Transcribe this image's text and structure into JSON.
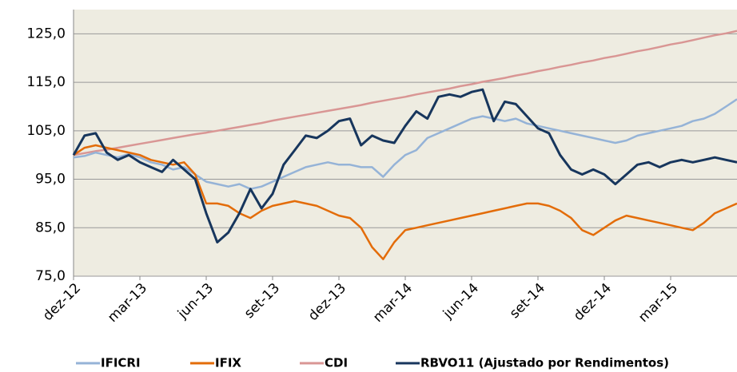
{
  "chart_data": {
    "type": "line",
    "categories": [
      "dez-12",
      null,
      null,
      null,
      null,
      null,
      "mar-13",
      null,
      null,
      null,
      null,
      null,
      "jun-13",
      null,
      null,
      null,
      null,
      null,
      "set-13",
      null,
      null,
      null,
      null,
      null,
      "dez-13",
      null,
      null,
      null,
      null,
      null,
      "mar-14",
      null,
      null,
      null,
      null,
      null,
      "jun-14",
      null,
      null,
      null,
      null,
      null,
      "set-14",
      null,
      null,
      null,
      null,
      null,
      "dez-14",
      null,
      null,
      null,
      null,
      null,
      "mar-15",
      null,
      null,
      null,
      null,
      null,
      null
    ],
    "ylim": [
      75,
      130
    ],
    "yticks": [
      {
        "value": 75,
        "label": "75,0"
      },
      {
        "value": 85,
        "label": "85,0"
      },
      {
        "value": 95,
        "label": "95,0"
      },
      {
        "value": 105,
        "label": "105,0"
      },
      {
        "value": 115,
        "label": "115,0"
      },
      {
        "value": 125,
        "label": "125,0"
      }
    ],
    "grid": true,
    "legend": "bottom",
    "series": [
      {
        "name": "IFICRI",
        "color": "#95b3d7",
        "values": [
          99.5,
          99.8,
          100.5,
          100.0,
          99.5,
          100.2,
          99.5,
          98.5,
          98.0,
          97.0,
          97.5,
          96.0,
          94.5,
          94.0,
          93.5,
          94.0,
          93.0,
          93.5,
          94.5,
          95.5,
          96.5,
          97.5,
          98.0,
          98.5,
          98.0,
          98.0,
          97.5,
          97.5,
          95.5,
          98.0,
          100.0,
          101.0,
          103.5,
          104.5,
          105.5,
          106.5,
          107.5,
          108.0,
          107.5,
          107.0,
          107.5,
          106.5,
          106.0,
          105.5,
          105.0,
          104.5,
          104.0,
          103.5,
          103.0,
          102.5,
          103.0,
          104.0,
          104.5,
          105.0,
          105.5,
          106.0,
          107.0,
          107.5,
          108.5,
          110.0,
          111.5
        ]
      },
      {
        "name": "IFIX",
        "color": "#e36c09",
        "values": [
          100.0,
          101.5,
          102.0,
          101.5,
          101.0,
          100.5,
          100.0,
          99.0,
          98.5,
          98.0,
          98.5,
          96.0,
          90.0,
          90.0,
          89.5,
          88.0,
          87.0,
          88.5,
          89.5,
          90.0,
          90.5,
          90.0,
          89.5,
          88.5,
          87.5,
          87.0,
          85.0,
          81.0,
          78.5,
          82.0,
          84.5,
          85.0,
          85.5,
          86.0,
          86.5,
          87.0,
          87.5,
          88.0,
          88.5,
          89.0,
          89.5,
          90.0,
          90.0,
          89.5,
          88.5,
          87.0,
          84.5,
          83.5,
          85.0,
          86.5,
          87.5,
          87.0,
          86.5,
          86.0,
          85.5,
          85.0,
          84.5,
          86.0,
          88.0,
          89.0,
          90.0
        ]
      },
      {
        "name": "CDI",
        "color": "#d99694",
        "values": [
          100.0,
          100.4,
          100.8,
          101.1,
          101.5,
          101.9,
          102.3,
          102.7,
          103.1,
          103.5,
          103.9,
          104.3,
          104.6,
          105.0,
          105.4,
          105.8,
          106.2,
          106.6,
          107.1,
          107.5,
          107.9,
          108.3,
          108.7,
          109.1,
          109.5,
          109.9,
          110.3,
          110.8,
          111.2,
          111.6,
          112.0,
          112.5,
          112.9,
          113.3,
          113.7,
          114.2,
          114.6,
          115.1,
          115.5,
          115.9,
          116.4,
          116.8,
          117.3,
          117.7,
          118.2,
          118.6,
          119.1,
          119.5,
          120.0,
          120.4,
          120.9,
          121.4,
          121.8,
          122.3,
          122.8,
          123.2,
          123.7,
          124.2,
          124.7,
          125.1,
          125.6
        ]
      },
      {
        "name": "RBVO11 (Ajustado por Rendimentos)",
        "color": "#17365d",
        "values": [
          100,
          104,
          104.5,
          100.5,
          99,
          100,
          98.5,
          97.5,
          96.5,
          99,
          97,
          95,
          88,
          82,
          84,
          88,
          93,
          89,
          92,
          98,
          101,
          104,
          103.5,
          105,
          107,
          107.5,
          102,
          104,
          103,
          102.5,
          106,
          109,
          107.5,
          112,
          112.5,
          112,
          113,
          113.5,
          107,
          111,
          110.5,
          108,
          105.5,
          104.5,
          100,
          97,
          96,
          97,
          96,
          94,
          96,
          98,
          98.5,
          97.5,
          98.5,
          99,
          98.5,
          99,
          99.5,
          99,
          98.5
        ]
      }
    ]
  }
}
